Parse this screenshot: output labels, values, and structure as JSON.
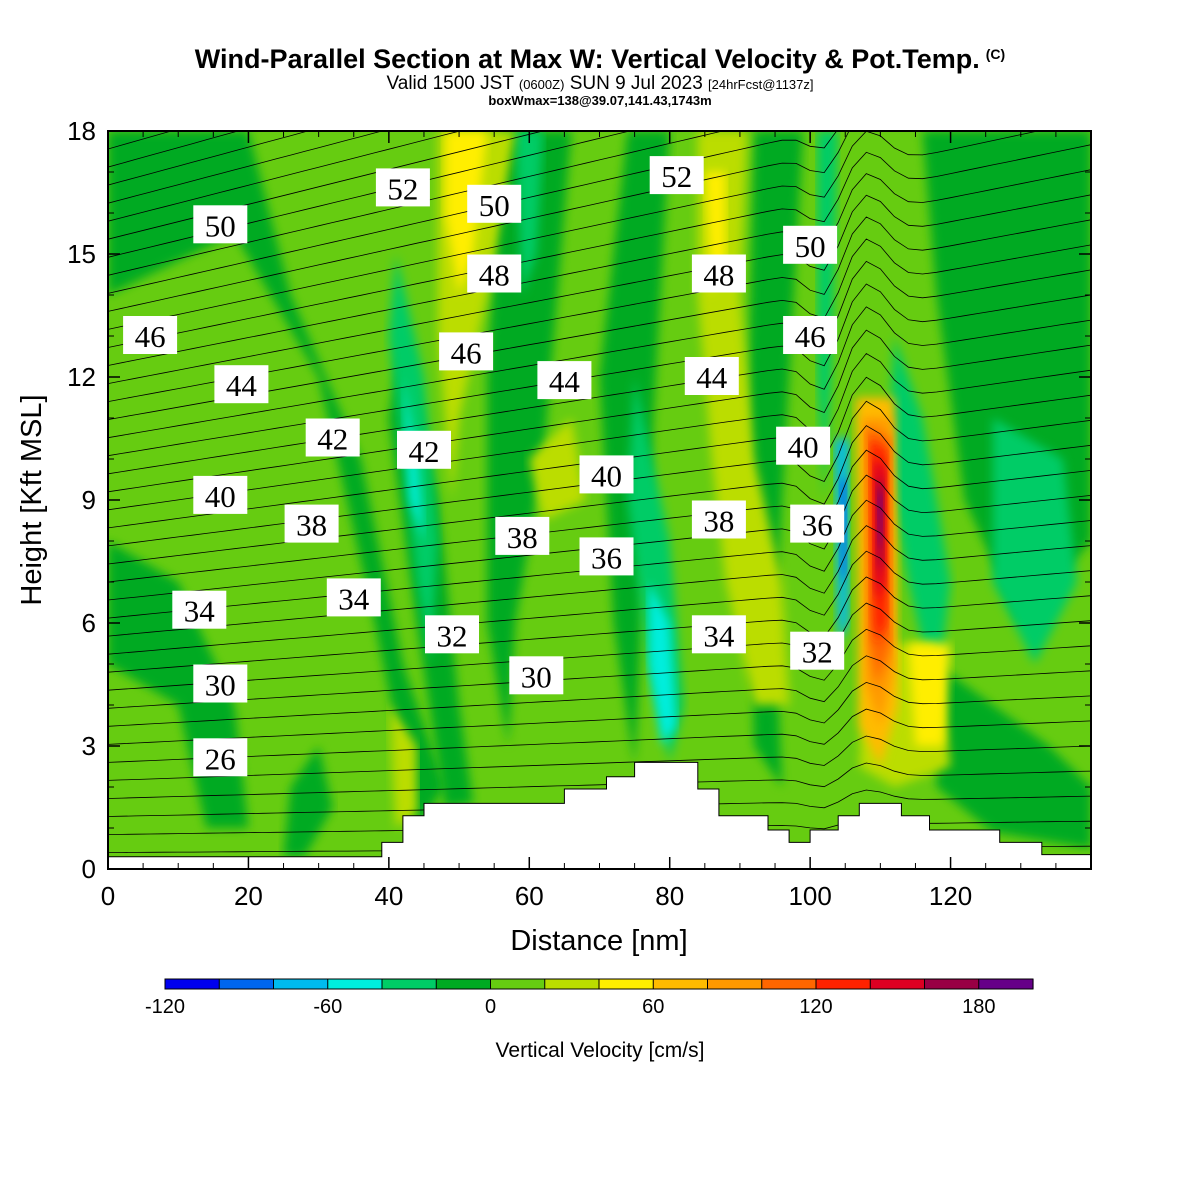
{
  "title": {
    "main": "Wind-Parallel Section at Max W: Vertical Velocity & Pot.Temp.",
    "copyright": "(C)",
    "valid_prefix": "Valid 1500 JST",
    "valid_utc": "(0600Z)",
    "valid_date": "SUN 9 Jul 2023",
    "forecast": "[24hrFcst@1137z]",
    "boxwmax": "boxWmax=138@39.07,141.43,1743m"
  },
  "chart_data": {
    "type": "contour",
    "xlabel": "Distance [nm]",
    "ylabel": "Height [Kft MSL]",
    "xlim": [
      0,
      140
    ],
    "ylim": [
      0,
      18
    ],
    "xticks": [
      0,
      20,
      40,
      60,
      80,
      100,
      120
    ],
    "yticks": [
      0,
      3,
      6,
      9,
      12,
      15,
      18
    ],
    "colorbar": {
      "label": "Vertical Velocity [cm/s]",
      "range": [
        -120,
        200
      ],
      "interval": 20,
      "tick_labels": [
        "-120",
        "-60",
        "0",
        "60",
        "120",
        "180"
      ],
      "colors": [
        "#0000ee",
        "#0066ee",
        "#00bbee",
        "#00eedd",
        "#00cc66",
        "#00aa22",
        "#66cc11",
        "#bbdd00",
        "#ffee00",
        "#ffbb00",
        "#ff9900",
        "#ff6600",
        "#ff2200",
        "#dd0022",
        "#990044",
        "#660088"
      ]
    },
    "terrain_profile": [
      [
        0,
        0.3
      ],
      [
        39,
        0.3
      ],
      [
        39,
        0.65
      ],
      [
        42,
        0.65
      ],
      [
        42,
        1.3
      ],
      [
        45,
        1.3
      ],
      [
        45,
        1.6
      ],
      [
        65,
        1.6
      ],
      [
        65,
        1.95
      ],
      [
        71,
        1.95
      ],
      [
        71,
        2.25
      ],
      [
        75,
        2.25
      ],
      [
        75,
        2.6
      ],
      [
        84,
        2.6
      ],
      [
        84,
        1.95
      ],
      [
        87,
        1.95
      ],
      [
        87,
        1.3
      ],
      [
        94,
        1.3
      ],
      [
        94,
        0.95
      ],
      [
        97,
        0.95
      ],
      [
        97,
        0.65
      ],
      [
        100,
        0.65
      ],
      [
        100,
        0.95
      ],
      [
        104,
        0.95
      ],
      [
        104,
        1.3
      ],
      [
        107,
        1.3
      ],
      [
        107,
        1.6
      ],
      [
        113,
        1.6
      ],
      [
        113,
        1.3
      ],
      [
        117,
        1.3
      ],
      [
        117,
        0.95
      ],
      [
        127,
        0.95
      ],
      [
        127,
        0.65
      ],
      [
        133,
        0.65
      ],
      [
        133,
        0.35
      ],
      [
        140,
        0.35
      ]
    ],
    "contour_labels": [
      {
        "text": "52",
        "x": 42,
        "y": 16.6
      },
      {
        "text": "50",
        "x": 55,
        "y": 16.2
      },
      {
        "text": "52",
        "x": 81,
        "y": 16.9
      },
      {
        "text": "50",
        "x": 16,
        "y": 15.7
      },
      {
        "text": "50",
        "x": 100,
        "y": 15.2
      },
      {
        "text": "48",
        "x": 55,
        "y": 14.5
      },
      {
        "text": "48",
        "x": 87,
        "y": 14.5
      },
      {
        "text": "46",
        "x": 6,
        "y": 13.0
      },
      {
        "text": "46",
        "x": 51,
        "y": 12.6
      },
      {
        "text": "46",
        "x": 100,
        "y": 13.0
      },
      {
        "text": "44",
        "x": 19,
        "y": 11.8
      },
      {
        "text": "44",
        "x": 65,
        "y": 11.9
      },
      {
        "text": "44",
        "x": 86,
        "y": 12.0
      },
      {
        "text": "42",
        "x": 32,
        "y": 10.5
      },
      {
        "text": "42",
        "x": 45,
        "y": 10.2
      },
      {
        "text": "40",
        "x": 99,
        "y": 10.3
      },
      {
        "text": "40",
        "x": 16,
        "y": 9.1
      },
      {
        "text": "40",
        "x": 71,
        "y": 9.6
      },
      {
        "text": "38",
        "x": 29,
        "y": 8.4
      },
      {
        "text": "38",
        "x": 59,
        "y": 8.1
      },
      {
        "text": "38",
        "x": 87,
        "y": 8.5
      },
      {
        "text": "36",
        "x": 101,
        "y": 8.4
      },
      {
        "text": "36",
        "x": 71,
        "y": 7.6
      },
      {
        "text": "34",
        "x": 13,
        "y": 6.3
      },
      {
        "text": "34",
        "x": 35,
        "y": 6.6
      },
      {
        "text": "34",
        "x": 87,
        "y": 5.7
      },
      {
        "text": "32",
        "x": 49,
        "y": 5.7
      },
      {
        "text": "32",
        "x": 101,
        "y": 5.3
      },
      {
        "text": "30",
        "x": 16,
        "y": 4.5
      },
      {
        "text": "30",
        "x": 61,
        "y": 4.7
      },
      {
        "text": "26",
        "x": 16,
        "y": 2.7
      }
    ]
  }
}
